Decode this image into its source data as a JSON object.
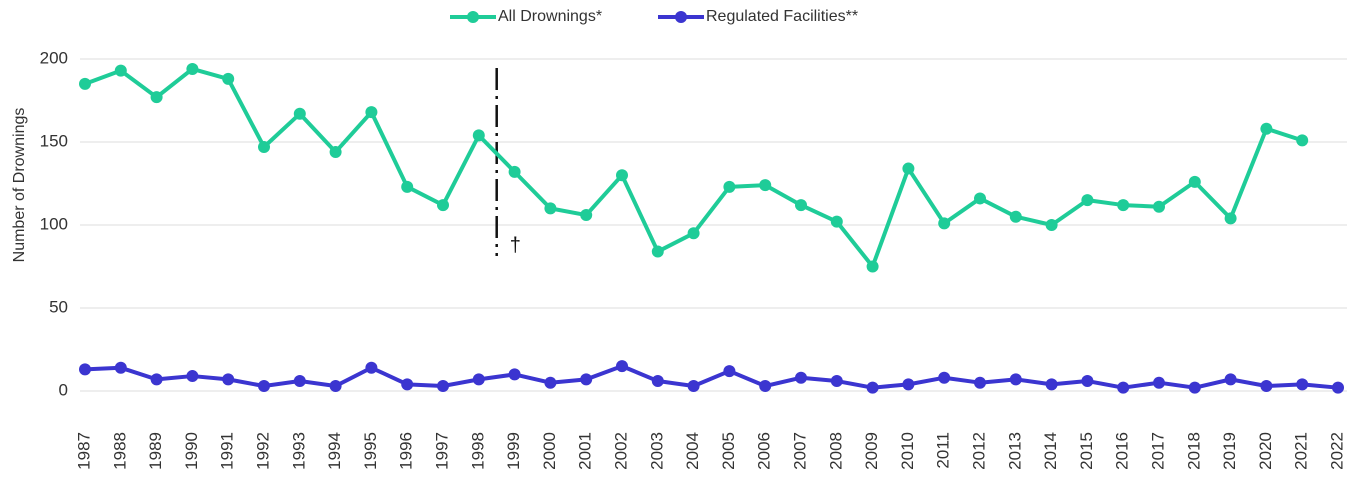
{
  "chart_data": {
    "type": "line",
    "y_label": "Number of Drownings",
    "categories": [
      "1987",
      "1988",
      "1989",
      "1990",
      "1991",
      "1992",
      "1993",
      "1994",
      "1995",
      "1996",
      "1997",
      "1998",
      "1999",
      "2000",
      "2001",
      "2002",
      "2003",
      "2004",
      "2005",
      "2006",
      "2007",
      "2008",
      "2009",
      "2010",
      "2011",
      "2012",
      "2013",
      "2014",
      "2015",
      "2016",
      "2017",
      "2018",
      "2019",
      "2020",
      "2021",
      "2022"
    ],
    "series": [
      {
        "name": "All Drownings*",
        "color": "#1fcc98",
        "values": [
          185,
          193,
          177,
          194,
          188,
          147,
          167,
          144,
          168,
          123,
          112,
          154,
          132,
          110,
          106,
          130,
          84,
          95,
          123,
          124,
          112,
          102,
          75,
          134,
          101,
          116,
          105,
          100,
          115,
          112,
          111,
          126,
          104,
          158,
          151,
          null
        ]
      },
      {
        "name": "Regulated Facilities**",
        "color": "#3b35d0",
        "values": [
          13,
          14,
          7,
          9,
          7,
          3,
          6,
          3,
          14,
          4,
          3,
          7,
          10,
          5,
          7,
          15,
          6,
          3,
          12,
          3,
          8,
          6,
          2,
          4,
          8,
          5,
          7,
          4,
          6,
          2,
          5,
          2,
          7,
          3,
          4,
          2
        ]
      }
    ],
    "annotation": "†",
    "ylim": [
      0,
      200
    ],
    "yticks": [
      0,
      50,
      100,
      150,
      200
    ],
    "grid": true,
    "legend": "top"
  }
}
